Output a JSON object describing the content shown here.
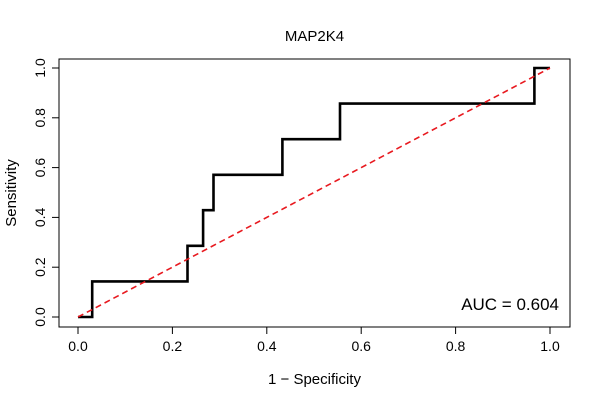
{
  "chart_data": {
    "type": "line",
    "title": "MAP2K4",
    "xlabel": "1 − Specificity",
    "ylabel": "Sensitivity",
    "xlim": [
      0,
      1
    ],
    "ylim": [
      0,
      1
    ],
    "x_ticks": [
      0,
      0.2,
      0.4,
      0.6,
      0.8,
      1
    ],
    "x_tick_labels": [
      "0.0",
      "0.2",
      "0.4",
      "0.6",
      "0.8",
      "1.0"
    ],
    "y_ticks": [
      0,
      0.2,
      0.4,
      0.6,
      0.8,
      1
    ],
    "y_tick_labels": [
      "0.0",
      "0.2",
      "0.4",
      "0.6",
      "0.8",
      "1.0"
    ],
    "grid": false,
    "annotation": "AUC = 0.604",
    "series": [
      {
        "name": "ROC curve",
        "color": "#000000",
        "x": [
          0,
          0.03,
          0.03,
          0.232,
          0.232,
          0.265,
          0.265,
          0.287,
          0.287,
          0.433,
          0.433,
          0.555,
          0.555,
          0.967,
          0.967,
          1.0
        ],
        "y": [
          0,
          0,
          0.143,
          0.143,
          0.286,
          0.286,
          0.429,
          0.429,
          0.571,
          0.571,
          0.714,
          0.714,
          0.857,
          0.857,
          1.0,
          1.0
        ]
      },
      {
        "name": "reference diagonal",
        "color": "#e8191f",
        "dashed": true,
        "x": [
          0,
          1
        ],
        "y": [
          0,
          1
        ]
      }
    ]
  }
}
